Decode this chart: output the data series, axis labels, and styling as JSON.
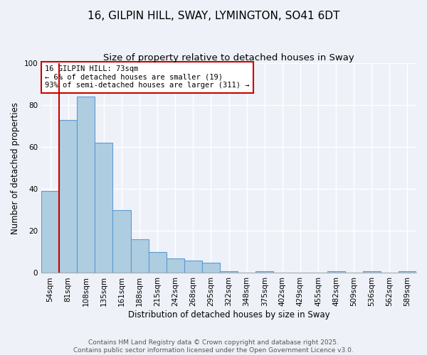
{
  "title": "16, GILPIN HILL, SWAY, LYMINGTON, SO41 6DT",
  "subtitle": "Size of property relative to detached houses in Sway",
  "xlabel": "Distribution of detached houses by size in Sway",
  "ylabel": "Number of detached properties",
  "categories": [
    "54sqm",
    "81sqm",
    "108sqm",
    "135sqm",
    "161sqm",
    "188sqm",
    "215sqm",
    "242sqm",
    "268sqm",
    "295sqm",
    "322sqm",
    "348sqm",
    "375sqm",
    "402sqm",
    "429sqm",
    "455sqm",
    "482sqm",
    "509sqm",
    "536sqm",
    "562sqm",
    "589sqm"
  ],
  "values": [
    39,
    73,
    84,
    62,
    30,
    16,
    10,
    7,
    6,
    5,
    1,
    0,
    1,
    0,
    0,
    0,
    1,
    0,
    1,
    0,
    1
  ],
  "bar_color": "#aecde0",
  "bar_edge_color": "#5b9bd5",
  "ylim": [
    0,
    100
  ],
  "yticks": [
    0,
    20,
    40,
    60,
    80,
    100
  ],
  "vline_x_index": 1,
  "vline_color": "#cc0000",
  "annotation_text": "16 GILPIN HILL: 73sqm\n← 6% of detached houses are smaller (19)\n93% of semi-detached houses are larger (311) →",
  "annotation_box_color": "#ffffff",
  "annotation_box_edge_color": "#cc0000",
  "footer_line1": "Contains HM Land Registry data © Crown copyright and database right 2025.",
  "footer_line2": "Contains public sector information licensed under the Open Government Licence v3.0.",
  "background_color": "#eef2f8",
  "plot_bg_color": "#eef2f8",
  "grid_color": "#ffffff",
  "title_fontsize": 11,
  "subtitle_fontsize": 9.5,
  "axis_label_fontsize": 8.5,
  "tick_fontsize": 7.5,
  "annotation_fontsize": 7.5,
  "footer_fontsize": 6.5
}
